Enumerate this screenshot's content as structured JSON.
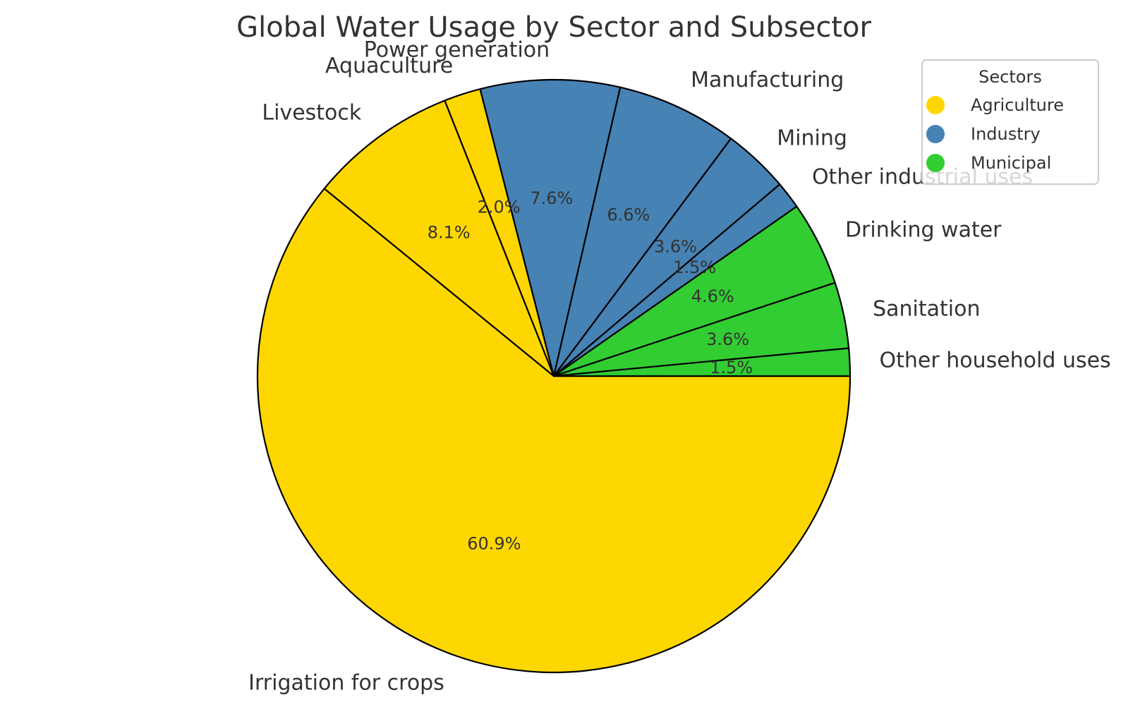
{
  "chart_data": {
    "type": "pie",
    "title": "Global Water Usage by Sector and Subsector",
    "legend": {
      "title": "Sectors",
      "placement": "top-right",
      "entries": [
        {
          "name": "Agriculture",
          "color": "#FFD700"
        },
        {
          "name": "Industry",
          "color": "#4682B4"
        },
        {
          "name": "Municipal",
          "color": "#32CD32"
        }
      ]
    },
    "slices": [
      {
        "label": "Irrigation for crops",
        "sector": "Agriculture",
        "value": 60.9,
        "pct_label": "60.9%",
        "color": "#FFD700"
      },
      {
        "label": "Livestock",
        "sector": "Agriculture",
        "value": 8.1,
        "pct_label": "8.1%",
        "color": "#FFD700"
      },
      {
        "label": "Aquaculture",
        "sector": "Agriculture",
        "value": 2.0,
        "pct_label": "2.0%",
        "color": "#FFD700"
      },
      {
        "label": "Power generation",
        "sector": "Industry",
        "value": 7.6,
        "pct_label": "7.6%",
        "color": "#4682B4"
      },
      {
        "label": "Manufacturing",
        "sector": "Industry",
        "value": 6.6,
        "pct_label": "6.6%",
        "color": "#4682B4"
      },
      {
        "label": "Mining",
        "sector": "Industry",
        "value": 3.6,
        "pct_label": "3.6%",
        "color": "#4682B4"
      },
      {
        "label": "Other industrial uses",
        "sector": "Industry",
        "value": 1.5,
        "pct_label": "1.5%",
        "color": "#4682B4"
      },
      {
        "label": "Drinking water",
        "sector": "Municipal",
        "value": 4.6,
        "pct_label": "4.6%",
        "color": "#32CD32"
      },
      {
        "label": "Sanitation",
        "sector": "Municipal",
        "value": 3.6,
        "pct_label": "3.6%",
        "color": "#32CD32"
      },
      {
        "label": "Other household uses",
        "sector": "Municipal",
        "value": 1.5,
        "pct_label": "1.5%",
        "color": "#32CD32"
      }
    ]
  }
}
